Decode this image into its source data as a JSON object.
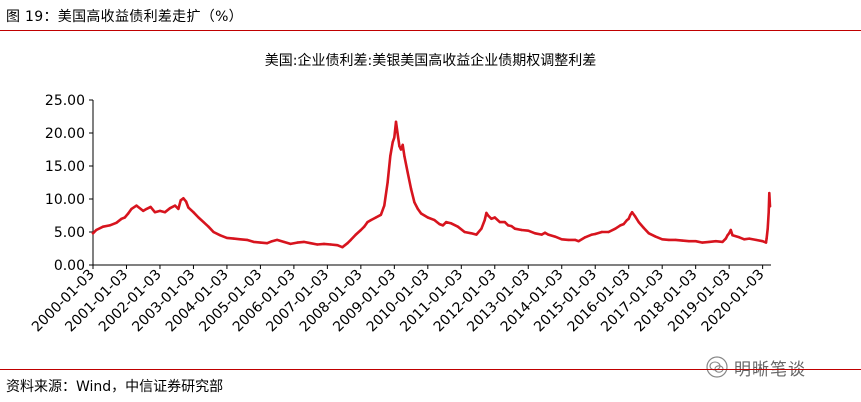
{
  "header": {
    "figure_label": "图 19：美国高收益债利差走扩（%）"
  },
  "footer": {
    "source": "资料来源：Wind，中信证券研究部",
    "watermark": "明晰笔谈"
  },
  "colors": {
    "series": "#d7141e",
    "rule": "#c00000",
    "axis": "#000000"
  },
  "chart_data": {
    "type": "line",
    "title": "美国:企业债利差:美银美国高收益企业债期权调整利差",
    "xlabel": "",
    "ylabel": "",
    "ylim": [
      0,
      25
    ],
    "y_ticks": [
      "0.00",
      "5.00",
      "10.00",
      "15.00",
      "20.00",
      "25.00"
    ],
    "x_ticks": [
      "2000-01-03",
      "2001-01-03",
      "2002-01-03",
      "2003-01-03",
      "2004-01-03",
      "2005-01-03",
      "2006-01-03",
      "2007-01-03",
      "2008-01-03",
      "2009-01-03",
      "2010-01-03",
      "2011-01-03",
      "2012-01-03",
      "2013-01-03",
      "2014-01-03",
      "2015-01-03",
      "2016-01-03",
      "2017-01-03",
      "2018-01-03",
      "2019-01-03",
      "2020-01-03"
    ],
    "grid": false,
    "legend": "none",
    "series": [
      {
        "x": [
          2000.0,
          2000.1,
          2000.3,
          2000.5,
          2000.7,
          2000.85,
          2000.95,
          2001.05,
          2001.15,
          2001.3,
          2001.5,
          2001.6,
          2001.72,
          2001.85,
          2002.0,
          2002.15,
          2002.3,
          2002.45,
          2002.55,
          2002.62,
          2002.7,
          2002.78,
          2002.85,
          2003.0,
          2003.15,
          2003.3,
          2003.45,
          2003.6,
          2003.8,
          2004.0,
          2004.2,
          2004.4,
          2004.6,
          2004.8,
          2005.0,
          2005.2,
          2005.35,
          2005.5,
          2005.7,
          2005.9,
          2006.1,
          2006.3,
          2006.5,
          2006.7,
          2006.9,
          2007.1,
          2007.3,
          2007.45,
          2007.6,
          2007.7,
          2007.85,
          2008.0,
          2008.1,
          2008.2,
          2008.3,
          2008.45,
          2008.6,
          2008.7,
          2008.8,
          2008.88,
          2008.95,
          2009.0,
          2009.05,
          2009.1,
          2009.15,
          2009.2,
          2009.25,
          2009.3,
          2009.4,
          2009.5,
          2009.6,
          2009.7,
          2009.8,
          2010.0,
          2010.2,
          2010.35,
          2010.45,
          2010.55,
          2010.7,
          2010.9,
          2011.1,
          2011.3,
          2011.45,
          2011.6,
          2011.7,
          2011.75,
          2011.8,
          2011.9,
          2012.0,
          2012.15,
          2012.3,
          2012.4,
          2012.5,
          2012.6,
          2012.8,
          2013.0,
          2013.2,
          2013.4,
          2013.5,
          2013.6,
          2013.8,
          2014.0,
          2014.2,
          2014.4,
          2014.5,
          2014.7,
          2014.9,
          2015.0,
          2015.2,
          2015.4,
          2015.6,
          2015.75,
          2015.85,
          2015.95,
          2016.0,
          2016.05,
          2016.1,
          2016.2,
          2016.3,
          2016.45,
          2016.6,
          2016.8,
          2017.0,
          2017.2,
          2017.4,
          2017.6,
          2017.8,
          2018.0,
          2018.2,
          2018.4,
          2018.6,
          2018.8,
          2018.9,
          2018.95,
          2019.0,
          2019.05,
          2019.1,
          2019.3,
          2019.45,
          2019.6,
          2019.8,
          2020.0,
          2020.1,
          2020.12,
          2020.15,
          2020.18,
          2020.2,
          2020.22
        ],
        "y": [
          4.8,
          5.3,
          5.8,
          6.0,
          6.4,
          7.0,
          7.2,
          7.8,
          8.5,
          9.0,
          8.2,
          8.5,
          8.8,
          8.0,
          8.2,
          8.0,
          8.6,
          9.0,
          8.5,
          9.8,
          10.1,
          9.6,
          8.7,
          8.0,
          7.2,
          6.5,
          5.8,
          5.0,
          4.5,
          4.1,
          4.0,
          3.9,
          3.8,
          3.5,
          3.4,
          3.3,
          3.6,
          3.8,
          3.5,
          3.2,
          3.4,
          3.5,
          3.3,
          3.1,
          3.2,
          3.1,
          3.0,
          2.7,
          3.3,
          3.8,
          4.6,
          5.3,
          5.8,
          6.5,
          6.8,
          7.2,
          7.6,
          9.0,
          12.5,
          16.5,
          18.6,
          19.3,
          21.7,
          19.8,
          18.0,
          17.5,
          18.2,
          16.5,
          14.0,
          11.5,
          9.5,
          8.5,
          7.8,
          7.2,
          6.8,
          6.2,
          6.0,
          6.5,
          6.3,
          5.8,
          5.0,
          4.8,
          4.6,
          5.5,
          6.8,
          7.9,
          7.5,
          7.0,
          7.2,
          6.5,
          6.5,
          6.0,
          5.9,
          5.5,
          5.3,
          5.2,
          4.8,
          4.6,
          4.9,
          4.6,
          4.3,
          3.9,
          3.8,
          3.8,
          3.6,
          4.2,
          4.6,
          4.7,
          5.0,
          5.0,
          5.5,
          6.0,
          6.2,
          6.8,
          7.0,
          7.6,
          8.0,
          7.3,
          6.5,
          5.6,
          4.8,
          4.3,
          3.9,
          3.8,
          3.8,
          3.7,
          3.6,
          3.6,
          3.4,
          3.5,
          3.6,
          3.5,
          4.0,
          4.5,
          4.8,
          5.3,
          4.5,
          4.2,
          3.9,
          4.0,
          3.8,
          3.6,
          3.4,
          4.0,
          5.5,
          8.0,
          10.9,
          8.9
        ]
      }
    ]
  }
}
